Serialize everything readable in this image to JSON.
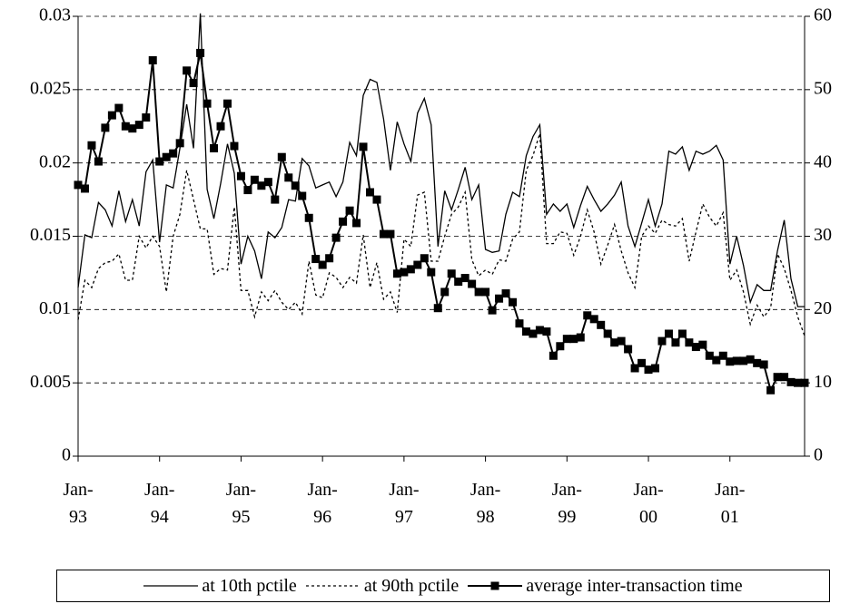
{
  "chart_data": {
    "type": "line",
    "categories": [
      "Jan-93",
      null,
      null,
      null,
      null,
      null,
      null,
      null,
      null,
      null,
      null,
      null,
      "Jan-94",
      null,
      null,
      null,
      null,
      null,
      null,
      null,
      null,
      null,
      null,
      null,
      "Jan-95",
      null,
      null,
      null,
      null,
      null,
      null,
      null,
      null,
      null,
      null,
      null,
      "Jan-96",
      null,
      null,
      null,
      null,
      null,
      null,
      null,
      null,
      null,
      null,
      null,
      "Jan-97",
      null,
      null,
      null,
      null,
      null,
      null,
      null,
      null,
      null,
      null,
      null,
      "Jan-98",
      null,
      null,
      null,
      null,
      null,
      null,
      null,
      null,
      null,
      null,
      null,
      "Jan-99",
      null,
      null,
      null,
      null,
      null,
      null,
      null,
      null,
      null,
      null,
      null,
      "Jan-00",
      null,
      null,
      null,
      null,
      null,
      null,
      null,
      null,
      null,
      null,
      null,
      "Jan-01",
      null,
      null,
      null,
      null,
      null,
      null,
      null,
      null,
      null,
      null,
      null
    ],
    "ylim": [
      0,
      0.03
    ],
    "yticks": [
      0,
      0.005,
      0.01,
      0.015,
      0.02,
      0.025,
      0.03
    ],
    "y2lim": [
      0,
      60
    ],
    "y2ticks": [
      0,
      10,
      20,
      30,
      40,
      50,
      60
    ],
    "grid": true,
    "legend": "bottom",
    "series": [
      {
        "name": "at 10th pctile",
        "color": "#000000",
        "dash": false,
        "marker": "none",
        "values": [
          0.0115,
          0.0151,
          0.0149,
          0.0173,
          0.0168,
          0.0157,
          0.0181,
          0.016,
          0.0175,
          0.0157,
          0.0194,
          0.0202,
          0.0146,
          0.0185,
          0.0183,
          0.021,
          0.024,
          0.021,
          0.0302,
          0.0182,
          0.0162,
          0.0186,
          0.0213,
          0.0193,
          0.0131,
          0.015,
          0.014,
          0.0121,
          0.0153,
          0.0149,
          0.0156,
          0.0175,
          0.0174,
          0.0203,
          0.0198,
          0.0183,
          0.0185,
          0.0187,
          0.0177,
          0.0187,
          0.0214,
          0.0205,
          0.0246,
          0.0257,
          0.0255,
          0.023,
          0.0195,
          0.0228,
          0.0213,
          0.0201,
          0.0234,
          0.0244,
          0.0226,
          0.0143,
          0.0181,
          0.0168,
          0.0182,
          0.0197,
          0.0175,
          0.0185,
          0.0141,
          0.0139,
          0.014,
          0.0165,
          0.018,
          0.0177,
          0.0205,
          0.0218,
          0.0226,
          0.0165,
          0.0172,
          0.0167,
          0.0172,
          0.0156,
          0.0171,
          0.0184,
          0.0175,
          0.0167,
          0.0172,
          0.0178,
          0.0187,
          0.0157,
          0.0143,
          0.0159,
          0.0175,
          0.0157,
          0.0172,
          0.0208,
          0.0206,
          0.0211,
          0.0195,
          0.0208,
          0.0206,
          0.0208,
          0.0212,
          0.0202,
          0.0131,
          0.015,
          0.013,
          0.0105,
          0.0117,
          0.0113,
          0.0113,
          0.014,
          0.0161,
          0.0121,
          0.0102,
          0.0102
        ]
      },
      {
        "name": "at 90th pctile",
        "color": "#000000",
        "dash": true,
        "marker": "none",
        "values": [
          0.0093,
          0.012,
          0.0115,
          0.0128,
          0.0132,
          0.0133,
          0.0138,
          0.012,
          0.012,
          0.015,
          0.0142,
          0.015,
          0.0143,
          0.0112,
          0.015,
          0.0165,
          0.0195,
          0.0175,
          0.0155,
          0.0155,
          0.0124,
          0.0128,
          0.0127,
          0.017,
          0.0113,
          0.0113,
          0.0095,
          0.0112,
          0.0106,
          0.0113,
          0.0105,
          0.01,
          0.0105,
          0.0097,
          0.0133,
          0.011,
          0.0108,
          0.0125,
          0.0122,
          0.0115,
          0.0122,
          0.0118,
          0.0151,
          0.0115,
          0.0132,
          0.0107,
          0.0112,
          0.0098,
          0.0148,
          0.0143,
          0.0178,
          0.018,
          0.0133,
          0.0133,
          0.015,
          0.0165,
          0.017,
          0.018,
          0.0134,
          0.0123,
          0.0127,
          0.0124,
          0.0134,
          0.0133,
          0.0148,
          0.0153,
          0.0195,
          0.0205,
          0.022,
          0.0145,
          0.0145,
          0.0153,
          0.0152,
          0.0137,
          0.015,
          0.0168,
          0.0153,
          0.0131,
          0.0144,
          0.0158,
          0.014,
          0.0125,
          0.0115,
          0.015,
          0.0157,
          0.0152,
          0.0161,
          0.0158,
          0.0157,
          0.0162,
          0.0133,
          0.0153,
          0.0172,
          0.0163,
          0.0157,
          0.0166,
          0.012,
          0.0127,
          0.0112,
          0.009,
          0.0103,
          0.0095,
          0.0101,
          0.0138,
          0.0128,
          0.0113,
          0.0095,
          0.0082
        ]
      },
      {
        "name": "average inter-transaction time",
        "color": "#000000",
        "dash": false,
        "marker": "square",
        "axis": "y2",
        "values": [
          37,
          36.5,
          42.4,
          40.2,
          44.8,
          46.5,
          47.5,
          45,
          44.7,
          45.2,
          46.2,
          54,
          40.2,
          40.8,
          41.3,
          42.7,
          52.6,
          50.9,
          55,
          48.1,
          42,
          45,
          48.1,
          42.3,
          38.2,
          36.3,
          37.7,
          36.9,
          37.4,
          35,
          40.8,
          38,
          36.9,
          35.5,
          32.5,
          26.9,
          26.1,
          27,
          29.8,
          32,
          33.5,
          31.8,
          42.2,
          36,
          35,
          30.3,
          30.3,
          24.9,
          25.1,
          25.5,
          26.1,
          27,
          25.1,
          20.2,
          22.4,
          24.9,
          23.8,
          24.3,
          23.5,
          22.4,
          22.4,
          19.9,
          21.5,
          22.2,
          21,
          18.1,
          17,
          16.7,
          17.2,
          17,
          13.7,
          15,
          16,
          16,
          16.2,
          19.2,
          18.7,
          17.9,
          16.7,
          15.5,
          15.7,
          14.6,
          12,
          12.7,
          11.8,
          12,
          15.7,
          16.7,
          15.5,
          16.7,
          15.5,
          14.9,
          15.2,
          13.7,
          13.1,
          13.7,
          12.9,
          13,
          13,
          13.2,
          12.7,
          12.5,
          9,
          10.8,
          10.8,
          10.1,
          10,
          10
        ]
      }
    ]
  }
}
